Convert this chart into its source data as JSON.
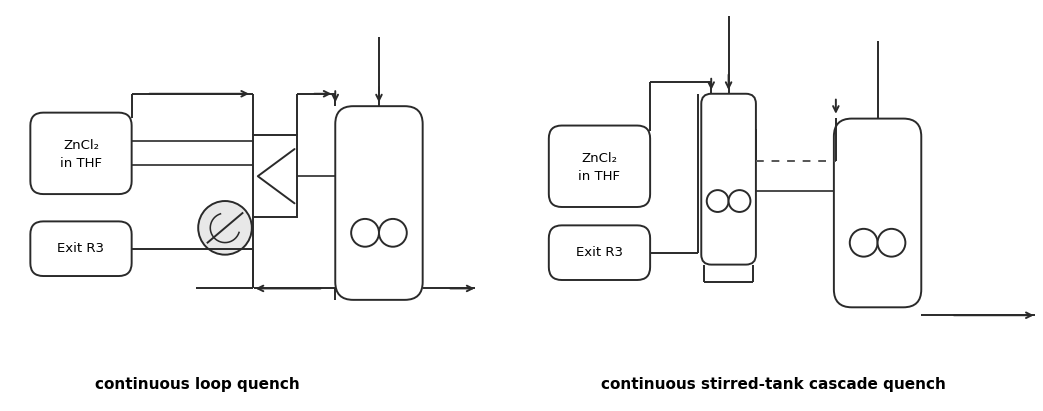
{
  "fig_width": 10.43,
  "fig_height": 4.11,
  "dpi": 100,
  "bg_color": "#ffffff",
  "line_color": "#2a2a2a",
  "label_left": "continuous loop quench",
  "label_right": "continuous stirred-tank cascade quench",
  "box1_text_line1": "ZnCl₂",
  "box1_text_line2": "in THF",
  "box2_text": "Exit R3"
}
